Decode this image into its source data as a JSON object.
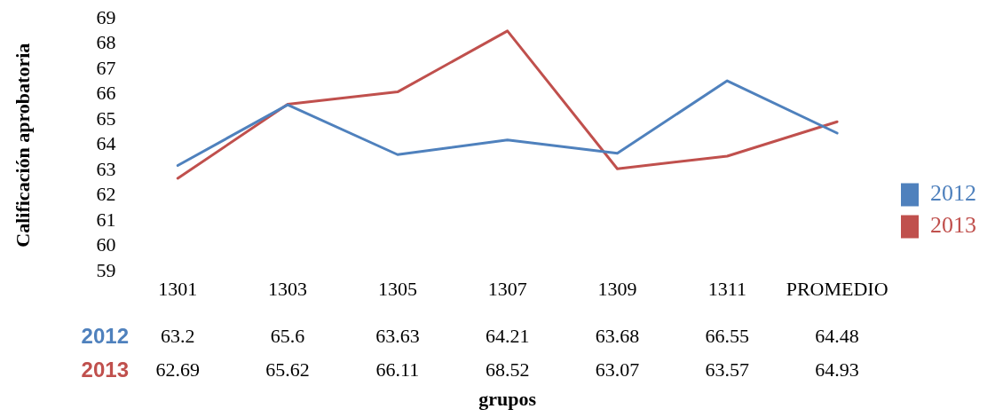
{
  "chart_data": {
    "type": "line",
    "categories": [
      "1301",
      "1303",
      "1305",
      "1307",
      "1309",
      "1311",
      "PROMEDIO"
    ],
    "series": [
      {
        "name": "2012",
        "color": "#4f81bd",
        "values": [
          63.2,
          65.6,
          63.63,
          64.21,
          63.68,
          66.55,
          64.48
        ]
      },
      {
        "name": "2013",
        "color": "#c0504d",
        "values": [
          62.69,
          65.62,
          66.11,
          68.52,
          63.07,
          63.57,
          64.93
        ]
      }
    ],
    "xlabel": "grupos",
    "ylabel": "Calificación aprobatoria",
    "ylim": [
      59,
      69
    ],
    "yticks": [
      59,
      60,
      61,
      62,
      63,
      64,
      65,
      66,
      67,
      68,
      69
    ],
    "grid": false,
    "legend": "right",
    "marker": "none",
    "line_style": "solid",
    "data_labels": true
  }
}
